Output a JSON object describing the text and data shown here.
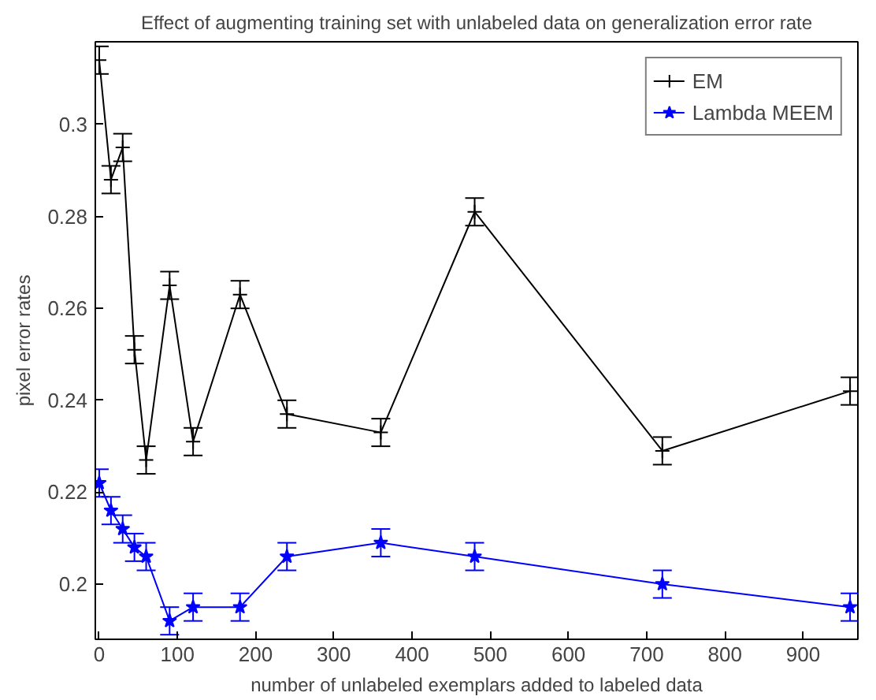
{
  "chart_data": {
    "type": "line",
    "title": "Effect of augmenting training set with unlabeled data on generalization error rate",
    "xlabel": "number of unlabeled exemplars added to labeled data",
    "ylabel": "pixel error rates",
    "x": [
      0,
      15,
      30,
      45,
      60,
      90,
      120,
      180,
      240,
      360,
      480,
      720,
      960
    ],
    "series": [
      {
        "name": "EM",
        "color": "#000000",
        "marker": "cross",
        "values": [
          0.314,
          0.288,
          0.295,
          0.251,
          0.227,
          0.265,
          0.231,
          0.263,
          0.237,
          0.233,
          0.281,
          0.229,
          0.242
        ],
        "errors": [
          0.003,
          0.003,
          0.003,
          0.003,
          0.003,
          0.003,
          0.003,
          0.003,
          0.003,
          0.003,
          0.003,
          0.003,
          0.003
        ]
      },
      {
        "name": "Lambda MEEM",
        "color": "#0000ff",
        "marker": "star",
        "values": [
          0.222,
          0.216,
          0.212,
          0.208,
          0.206,
          0.192,
          0.195,
          0.195,
          0.206,
          0.209,
          0.206,
          0.2,
          0.195
        ],
        "errors": [
          0.003,
          0.003,
          0.003,
          0.003,
          0.003,
          0.003,
          0.003,
          0.003,
          0.003,
          0.003,
          0.003,
          0.003,
          0.003
        ]
      }
    ],
    "xlim": [
      -5,
      970
    ],
    "ylim": [
      0.188,
      0.318
    ],
    "xticks": [
      0,
      100,
      200,
      300,
      400,
      500,
      600,
      700,
      800,
      900
    ],
    "yticks": [
      0.2,
      0.22,
      0.24,
      0.26,
      0.28,
      0.3
    ],
    "grid": false,
    "legend": "top right",
    "line_style": "solid"
  }
}
